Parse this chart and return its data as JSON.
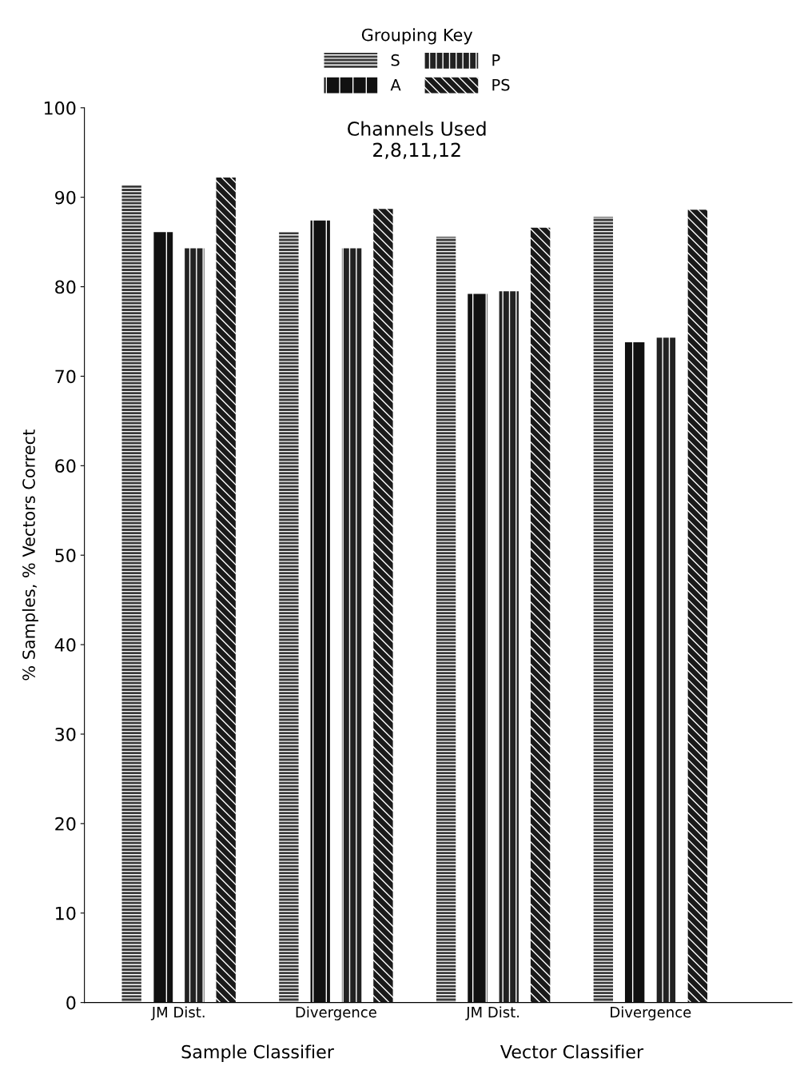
{
  "chart_data": {
    "type": "bar",
    "title": "Channels Used\n2,8,11,12",
    "ylabel": "% Samples, % Vectors Correct",
    "legend_title": "Grouping Key",
    "legend": "top",
    "categories": [
      "JM Dist.",
      "Divergence",
      "JM Dist.",
      "Divergence"
    ],
    "series": [
      {
        "name": "S",
        "color": "#3a3a3a",
        "values": [
          91.4,
          86.1,
          85.6,
          87.8
        ]
      },
      {
        "name": "A",
        "color": "#111111",
        "values": [
          86.1,
          87.4,
          79.2,
          73.8
        ]
      },
      {
        "name": "P",
        "color": "#222222",
        "values": [
          84.3,
          84.3,
          79.5,
          74.3
        ]
      },
      {
        "name": "PS",
        "color": "#1a1a1a",
        "values": [
          92.2,
          88.7,
          86.6,
          88.6
        ]
      }
    ],
    "annotations": [
      "Sample Classifier",
      "Vector Classifier"
    ],
    "ylim": [
      0,
      100
    ],
    "yticks": [
      0,
      10,
      20,
      30,
      40,
      50,
      60,
      70,
      80,
      90,
      100
    ],
    "grid": false
  }
}
